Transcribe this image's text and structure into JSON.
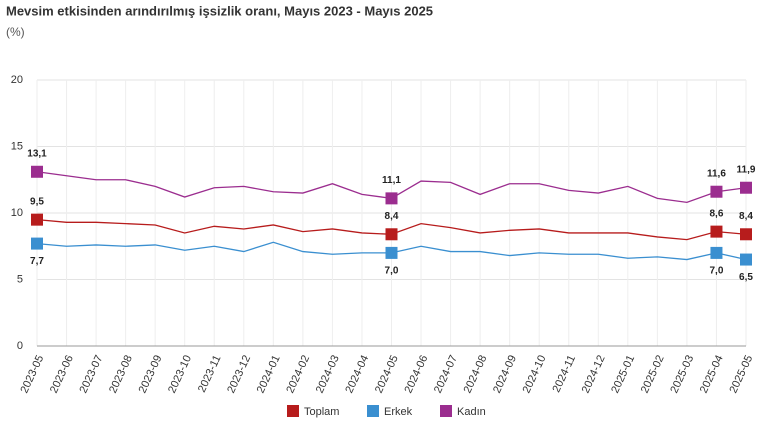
{
  "chart_data": {
    "type": "line",
    "title": "Mevsim etkisinden arındırılmış işsizlik oranı, Mayıs 2023 - Mayıs 2025",
    "subtitle": "(%)",
    "categories": [
      "2023-05",
      "2023-06",
      "2023-07",
      "2023-08",
      "2023-09",
      "2023-10",
      "2023-11",
      "2023-12",
      "2024-01",
      "2024-02",
      "2024-03",
      "2024-04",
      "2024-05",
      "2024-06",
      "2024-07",
      "2024-08",
      "2024-09",
      "2024-10",
      "2024-11",
      "2024-12",
      "2025-01",
      "2025-02",
      "2025-03",
      "2025-04",
      "2025-05"
    ],
    "series": [
      {
        "name": "Toplam",
        "color": "#b71c1c",
        "values": [
          9.5,
          9.3,
          9.3,
          9.2,
          9.1,
          8.5,
          9.0,
          8.8,
          9.1,
          8.6,
          8.8,
          8.5,
          8.4,
          9.2,
          8.9,
          8.5,
          8.7,
          8.8,
          8.5,
          8.5,
          8.5,
          8.2,
          8.0,
          8.6,
          8.4
        ],
        "value_labels": [
          "9,5",
          null,
          null,
          null,
          null,
          null,
          null,
          null,
          null,
          null,
          null,
          null,
          "8,4",
          null,
          null,
          null,
          null,
          null,
          null,
          null,
          null,
          null,
          null,
          "8,6",
          "8,4"
        ]
      },
      {
        "name": "Erkek",
        "color": "#3a8fd0",
        "values": [
          7.7,
          7.5,
          7.6,
          7.5,
          7.6,
          7.2,
          7.5,
          7.1,
          7.8,
          7.1,
          6.9,
          7.0,
          7.0,
          7.5,
          7.1,
          7.1,
          6.8,
          7.0,
          6.9,
          6.9,
          6.6,
          6.7,
          6.5,
          7.0,
          6.5
        ],
        "value_labels": [
          "7,7",
          null,
          null,
          null,
          null,
          null,
          null,
          null,
          null,
          null,
          null,
          null,
          "7,0",
          null,
          null,
          null,
          null,
          null,
          null,
          null,
          null,
          null,
          null,
          "7,0",
          "6,5"
        ]
      },
      {
        "name": "Kadın",
        "color": "#9b2d8f",
        "values": [
          13.1,
          12.8,
          12.5,
          12.5,
          12.0,
          11.2,
          11.9,
          12.0,
          11.6,
          11.5,
          12.2,
          11.4,
          11.1,
          12.4,
          12.3,
          11.4,
          12.2,
          12.2,
          11.7,
          11.5,
          12.0,
          11.1,
          10.8,
          11.6,
          11.9
        ],
        "value_labels": [
          "13,1",
          null,
          null,
          null,
          null,
          null,
          null,
          null,
          null,
          null,
          null,
          null,
          "11,1",
          null,
          null,
          null,
          null,
          null,
          null,
          null,
          null,
          null,
          null,
          "11,6",
          "11,9"
        ]
      }
    ],
    "ylim": [
      0,
      20
    ],
    "yticks": [
      0,
      5,
      10,
      15,
      20
    ],
    "grid": true
  }
}
